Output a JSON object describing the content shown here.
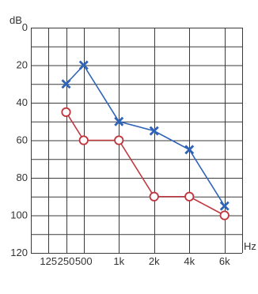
{
  "chart_data": {
    "type": "line",
    "ylabel": "dB",
    "xlabel": "Hz",
    "ylim": [
      0,
      120
    ],
    "y_ticks": [
      0,
      20,
      40,
      60,
      80,
      100,
      120
    ],
    "y_tick_labels": [
      "0",
      "20",
      "40",
      "60",
      "80",
      "100",
      "120"
    ],
    "x_categories": [
      "125",
      "250",
      "500",
      "1k",
      "2k",
      "4k",
      "6k"
    ],
    "x_positions": [
      0.5,
      1,
      1.5,
      2.5,
      3.5,
      4.5,
      5.5
    ],
    "x_range": [
      0,
      6
    ],
    "y_minor_step": 10,
    "grid": true,
    "series": [
      {
        "marker": "x",
        "color": "#2f63b8",
        "points": [
          {
            "x": "250",
            "y": 30
          },
          {
            "x": "500",
            "y": 20
          },
          {
            "x": "1k",
            "y": 50
          },
          {
            "x": "2k",
            "y": 55
          },
          {
            "x": "4k",
            "y": 65
          },
          {
            "x": "6k",
            "y": 95
          }
        ]
      },
      {
        "marker": "o",
        "color": "#c0363e",
        "points": [
          {
            "x": "250",
            "y": 45
          },
          {
            "x": "500",
            "y": 60
          },
          {
            "x": "1k",
            "y": 60
          },
          {
            "x": "2k",
            "y": 90
          },
          {
            "x": "4k",
            "y": 90
          },
          {
            "x": "6k",
            "y": 100
          }
        ]
      }
    ]
  }
}
